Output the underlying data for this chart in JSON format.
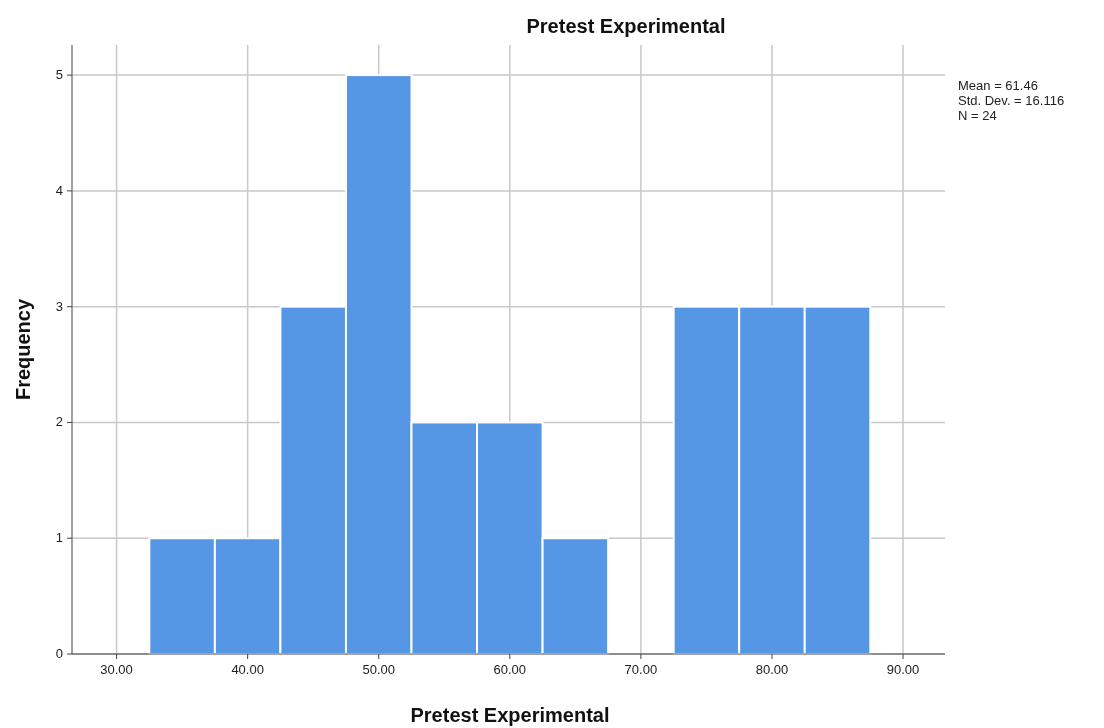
{
  "chart_data": {
    "type": "histogram",
    "title": "Pretest Experimental",
    "xlabel": "Pretest Experimental",
    "ylabel": "Frequency",
    "bins": [
      32.5,
      37.5,
      42.5,
      47.5,
      52.5,
      57.5,
      62.5,
      67.5,
      72.5,
      77.5,
      82.5,
      87.5
    ],
    "values": [
      1,
      1,
      3,
      5,
      2,
      2,
      1,
      0,
      3,
      3,
      3
    ],
    "color": "#5596e5",
    "xlim": [
      26.6,
      93.2
    ],
    "xticks": [
      {
        "value": 30,
        "label": "30.00"
      },
      {
        "value": 40,
        "label": "40.00"
      },
      {
        "value": 50,
        "label": "50.00"
      },
      {
        "value": 60,
        "label": "60.00"
      },
      {
        "value": 70,
        "label": "70.00"
      },
      {
        "value": 80,
        "label": "80.00"
      },
      {
        "value": 90,
        "label": "90.00"
      }
    ],
    "ylim": [
      0,
      5.26
    ],
    "yticks": [
      0,
      1,
      2,
      3,
      4,
      5
    ],
    "grid": true,
    "annotations": [
      "Mean = 61.46",
      "Std. Dev. = 16.116",
      "N = 24"
    ]
  }
}
